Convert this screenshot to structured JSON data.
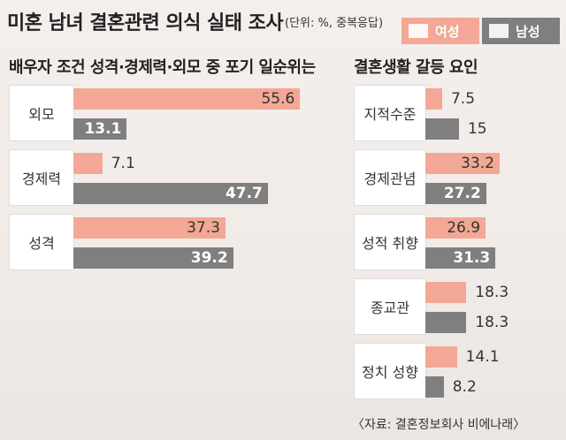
{
  "title": "미혼 남녀 결혼관련 의식 실태 조사",
  "unit_note": "(단위: %, 중복응답)",
  "legend": {
    "female": {
      "label": "여성",
      "color": "#f2a894"
    },
    "male": {
      "label": "남성",
      "color": "#7f7f7f"
    }
  },
  "source": "〈자료: 결혼정보회사 비에나래〉",
  "chart_data": [
    {
      "type": "bar",
      "orientation": "horizontal",
      "title": "배우자 조건 성격·경제력·외모 중 포기 일순위는",
      "categories": [
        "외모",
        "경제력",
        "성격"
      ],
      "series": [
        {
          "name": "여성",
          "values": [
            55.6,
            7.1,
            37.3
          ],
          "color": "#f2a894"
        },
        {
          "name": "남성",
          "values": [
            13.1,
            47.7,
            39.2
          ],
          "color": "#7f7f7f"
        }
      ]
    },
    {
      "type": "bar",
      "orientation": "horizontal",
      "title": "결혼생활 갈등 요인",
      "categories": [
        "지적수준",
        "경제관념",
        "성적 취향",
        "종교관",
        "정치 성향"
      ],
      "series": [
        {
          "name": "여성",
          "values": [
            7.5,
            33.2,
            26.9,
            18.3,
            14.1
          ],
          "color": "#f2a894"
        },
        {
          "name": "남성",
          "values": [
            15,
            27.2,
            31.3,
            18.3,
            8.2
          ],
          "color": "#7f7f7f"
        }
      ]
    }
  ]
}
